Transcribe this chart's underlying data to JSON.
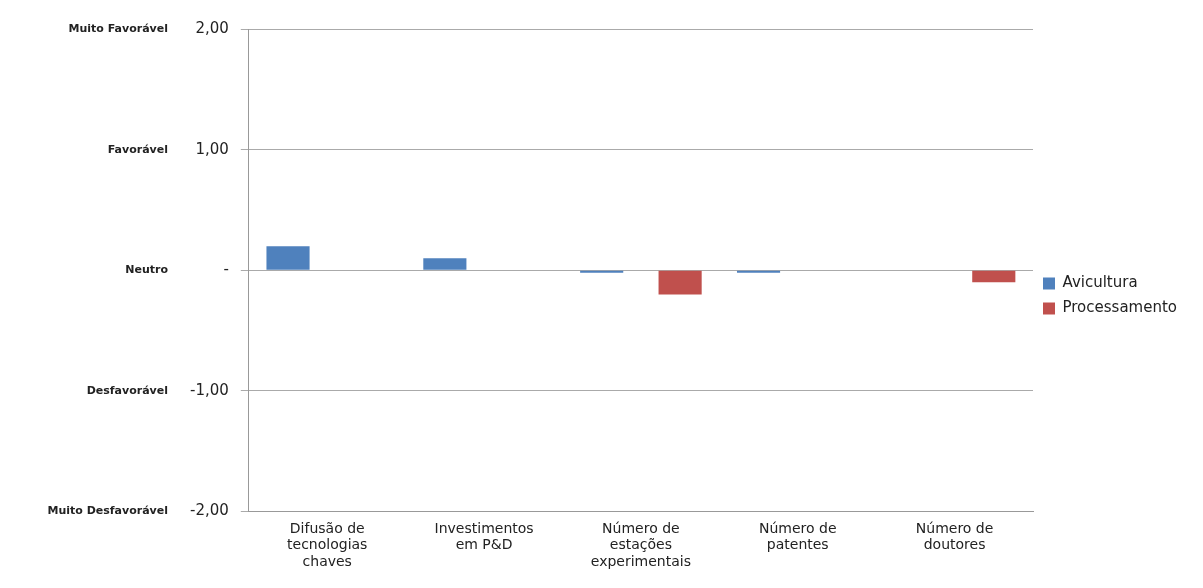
{
  "chart_data": {
    "type": "bar",
    "categories": [
      "Difusão de tecnologias chaves",
      "Investimentos em P&D",
      "Número de estações experimentais",
      "Número de patentes",
      "Número de doutores"
    ],
    "series": [
      {
        "name": "Avicultura",
        "color": "#4f81bd",
        "values": [
          0.2,
          0.1,
          -0.02,
          -0.02,
          0
        ]
      },
      {
        "name": "Processamento",
        "color": "#c0504d",
        "values": [
          0,
          0,
          -0.2,
          0,
          -0.1
        ]
      }
    ],
    "ylim": [
      -2,
      2
    ],
    "yticks": [
      {
        "value": -2,
        "label": "-2,00"
      },
      {
        "value": -1,
        "label": "-1,00"
      },
      {
        "value": 0,
        "label": "-"
      },
      {
        "value": 1,
        "label": "1,00"
      },
      {
        "value": 2,
        "label": "2,00"
      }
    ],
    "annotations": [
      "Muito Desfavorável",
      "Desfavorável",
      "Neutro",
      "Favorável",
      "Muito Favorável"
    ],
    "grid": "y",
    "legend": "right"
  }
}
